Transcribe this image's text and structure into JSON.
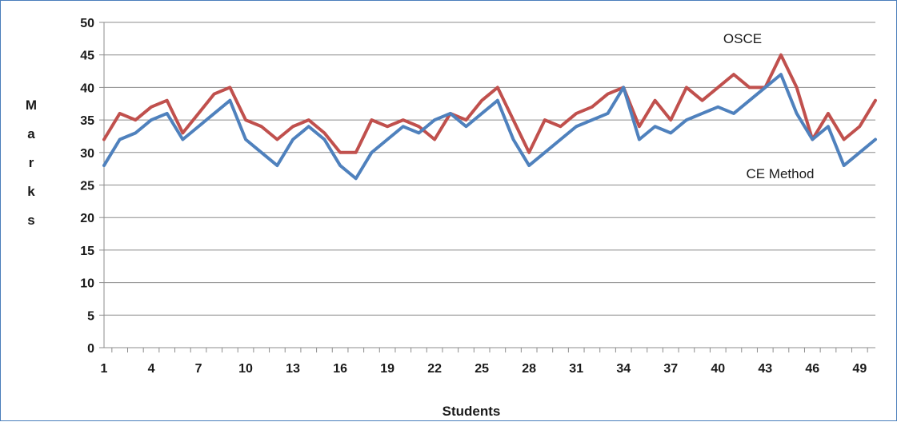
{
  "chart_data": {
    "type": "line",
    "title": "",
    "xlabel": "Students",
    "ylabel": "Marks",
    "ylim": [
      0,
      50
    ],
    "yticks": [
      "0",
      "5",
      "10",
      "15",
      "20",
      "25",
      "30",
      "35",
      "40",
      "45",
      "50"
    ],
    "xticks": [
      "1",
      "4",
      "7",
      "10",
      "13",
      "16",
      "19",
      "22",
      "25",
      "28",
      "31",
      "34",
      "37",
      "40",
      "43",
      "46",
      "49"
    ],
    "x": [
      1,
      2,
      3,
      4,
      5,
      6,
      7,
      8,
      9,
      10,
      11,
      12,
      13,
      14,
      15,
      16,
      17,
      18,
      19,
      20,
      21,
      22,
      23,
      24,
      25,
      26,
      27,
      28,
      29,
      30,
      31,
      32,
      33,
      34,
      35,
      36,
      37,
      38,
      39,
      40,
      41,
      42,
      43,
      44,
      45,
      46,
      47,
      48,
      49,
      50
    ],
    "grid": "horizontal",
    "series": [
      {
        "name": "OSCE",
        "color": "#c0504d",
        "values": [
          32,
          36,
          35,
          37,
          38,
          33,
          36,
          39,
          40,
          35,
          34,
          32,
          34,
          35,
          33,
          30,
          30,
          35,
          34,
          35,
          34,
          32,
          36,
          35,
          38,
          40,
          35,
          30,
          35,
          34,
          36,
          37,
          39,
          40,
          34,
          38,
          35,
          40,
          38,
          40,
          42,
          40,
          40,
          45,
          40,
          32,
          36,
          32,
          34,
          38
        ]
      },
      {
        "name": "CE Method",
        "color": "#4f81bd",
        "values": [
          28,
          32,
          33,
          35,
          36,
          32,
          34,
          36,
          38,
          32,
          30,
          28,
          32,
          34,
          32,
          28,
          26,
          30,
          32,
          34,
          33,
          35,
          36,
          34,
          36,
          38,
          32,
          28,
          30,
          32,
          34,
          35,
          36,
          40,
          32,
          34,
          33,
          35,
          36,
          37,
          36,
          38,
          40,
          42,
          36,
          32,
          34,
          28,
          30,
          32
        ]
      }
    ]
  }
}
